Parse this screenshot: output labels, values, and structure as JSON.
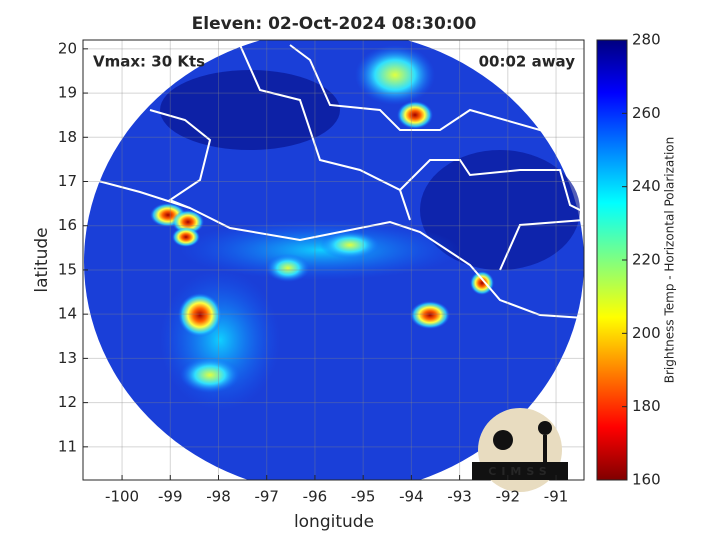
{
  "chart_data": {
    "type": "map",
    "title": "Eleven: 02-Oct-2024 08:30:00",
    "annotations": [
      "Vmax: 30 Kts",
      "00:02 away"
    ],
    "xlabel": "longitude",
    "ylabel": "latitude",
    "xlim": [
      -100.81,
      -90.42
    ],
    "xticks": [
      -100,
      -99,
      -98,
      -97,
      -96,
      -95,
      -94,
      -93,
      -92,
      -91
    ],
    "ylim": [
      10.25,
      20.2
    ],
    "yticks": [
      11,
      12,
      13,
      14,
      15,
      16,
      17,
      18,
      19,
      20
    ],
    "grid": true,
    "colorbar": {
      "label": "Brightness Temp - Horizontal Polarization",
      "lim": [
        160,
        280
      ],
      "ticks": [
        160,
        180,
        200,
        220,
        240,
        260,
        280
      ]
    },
    "logo": "CIMSS"
  }
}
